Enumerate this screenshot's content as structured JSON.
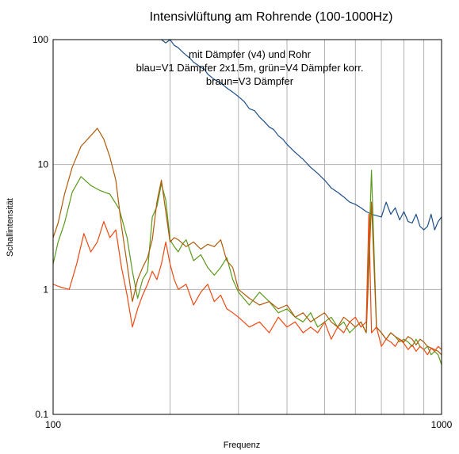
{
  "chart_data": {
    "type": "line",
    "title": "Intensivlüftung am Rohrende (100-1000Hz)",
    "xlabel": "Frequenz",
    "ylabel": "Schallintensität",
    "x_scale": "log",
    "y_scale": "log",
    "xlim": [
      100,
      1000
    ],
    "ylim": [
      0.1,
      100
    ],
    "x_ticks": [
      "100",
      "1000"
    ],
    "y_ticks": [
      "100",
      "10",
      "1",
      "0.1"
    ],
    "grid": true,
    "annotation_lines": [
      "mit Dämpfer (v4) und Rohr",
      "blau=V1 Dämpfer 2x1.5m, grün=V4 Dämpfer korr.",
      "braun=V3 Dämpfer"
    ],
    "colors": {
      "blue": "#1c4e8a",
      "green": "#5a9a1c",
      "brown": "#b05a0a",
      "orange": "#ec4a12",
      "grid": "#b3b3b3"
    },
    "series": [
      {
        "name": "blau=V1",
        "color": "#1c4e8a",
        "x": [
          190,
          195,
          200,
          205,
          210,
          215,
          220,
          225,
          230,
          235,
          240,
          245,
          250,
          260,
          270,
          280,
          290,
          300,
          310,
          320,
          330,
          340,
          350,
          360,
          370,
          380,
          390,
          400,
          420,
          440,
          460,
          480,
          500,
          520,
          540,
          560,
          580,
          600,
          620,
          640,
          660,
          680,
          700,
          720,
          740,
          760,
          780,
          800,
          820,
          840,
          860,
          880,
          900,
          920,
          940,
          960,
          980,
          1000
        ],
        "y": [
          100,
          94,
          100,
          90,
          86,
          80,
          75,
          71,
          66,
          63,
          60,
          58,
          53,
          48,
          45,
          41,
          38,
          35,
          32,
          28,
          27,
          24,
          22,
          20,
          19,
          17,
          16,
          14.5,
          12.5,
          11,
          9.5,
          8.5,
          7.5,
          6.5,
          6,
          5.5,
          5,
          4.8,
          4.5,
          4.2,
          4,
          3.9,
          3.8,
          5,
          4,
          4.5,
          3.6,
          4.2,
          3.5,
          3.4,
          4,
          3.2,
          3,
          3.2,
          4,
          3,
          3.5,
          3.8
        ]
      },
      {
        "name": "grün=V4",
        "color": "#5a9a1c",
        "x": [
          100,
          103,
          107,
          112,
          118,
          125,
          132,
          140,
          148,
          155,
          160,
          165,
          170,
          175,
          180,
          185,
          190,
          195,
          200,
          205,
          210,
          215,
          220,
          230,
          240,
          250,
          260,
          270,
          280,
          290,
          300,
          320,
          340,
          360,
          380,
          400,
          420,
          440,
          460,
          480,
          500,
          520,
          540,
          560,
          580,
          600,
          620,
          640,
          660,
          680,
          700,
          720,
          740,
          760,
          780,
          800,
          820,
          840,
          860,
          880,
          900,
          920,
          940,
          960,
          980,
          1000
        ],
        "y": [
          1.6,
          2.4,
          3.4,
          6,
          8,
          6.8,
          6.2,
          5.8,
          4.4,
          2.6,
          1.4,
          0.85,
          1.2,
          1.4,
          3.8,
          4.6,
          7,
          5.2,
          2.5,
          2.2,
          2,
          2.3,
          2.5,
          1.7,
          1.9,
          1.5,
          1.3,
          1.5,
          1.8,
          1.2,
          0.95,
          0.75,
          0.95,
          0.8,
          0.65,
          0.7,
          0.6,
          0.55,
          0.65,
          0.5,
          0.55,
          0.6,
          0.5,
          0.55,
          0.45,
          0.5,
          0.55,
          0.45,
          9,
          0.5,
          0.45,
          0.4,
          0.45,
          0.42,
          0.38,
          0.4,
          0.38,
          0.35,
          0.4,
          0.35,
          0.33,
          0.35,
          0.3,
          0.32,
          0.3,
          0.25
        ]
      },
      {
        "name": "braun=V3",
        "color": "#b05a0a",
        "x": [
          100,
          103,
          107,
          112,
          118,
          125,
          130,
          135,
          140,
          145,
          150,
          155,
          160,
          165,
          170,
          175,
          180,
          185,
          190,
          195,
          200,
          205,
          210,
          220,
          230,
          240,
          250,
          260,
          270,
          280,
          290,
          300,
          320,
          340,
          360,
          380,
          400,
          420,
          440,
          460,
          480,
          500,
          520,
          540,
          560,
          580,
          600,
          620,
          640,
          660,
          680,
          700,
          720,
          740,
          760,
          780,
          800,
          820,
          840,
          860,
          880,
          900,
          920,
          940,
          960,
          980,
          1000
        ],
        "y": [
          2.6,
          3.4,
          5.8,
          9.5,
          14,
          17,
          19.5,
          16,
          11.5,
          7.5,
          3.2,
          1.6,
          0.8,
          1.2,
          1.5,
          1.8,
          2.5,
          5,
          7.5,
          4.2,
          2.4,
          2.6,
          2.5,
          2.2,
          2.4,
          2.1,
          2.3,
          2.2,
          2.5,
          1.7,
          1.5,
          1,
          0.85,
          0.75,
          0.8,
          0.7,
          0.75,
          0.6,
          0.65,
          0.55,
          0.6,
          0.65,
          0.55,
          0.5,
          0.6,
          0.55,
          0.5,
          0.55,
          0.45,
          5,
          0.5,
          0.45,
          0.4,
          0.45,
          0.42,
          0.4,
          0.38,
          0.42,
          0.4,
          0.36,
          0.4,
          0.38,
          0.35,
          0.34,
          0.33,
          0.32,
          0.3
        ]
      },
      {
        "name": "orange",
        "color": "#ec4a12",
        "x": [
          100,
          104,
          110,
          115,
          120,
          125,
          130,
          135,
          140,
          145,
          150,
          155,
          160,
          165,
          170,
          175,
          180,
          185,
          190,
          195,
          200,
          205,
          210,
          220,
          230,
          240,
          250,
          260,
          270,
          280,
          290,
          300,
          320,
          340,
          360,
          380,
          400,
          420,
          440,
          460,
          480,
          500,
          520,
          540,
          560,
          580,
          600,
          620,
          640,
          650,
          660,
          680,
          700,
          720,
          740,
          760,
          780,
          800,
          820,
          840,
          860,
          880,
          900,
          920,
          940,
          960,
          980,
          1000
        ],
        "y": [
          1.1,
          1.05,
          1,
          1.6,
          2.8,
          2,
          2.4,
          3.5,
          2.6,
          3,
          1.5,
          0.9,
          0.5,
          0.7,
          0.9,
          1.1,
          1.4,
          1.2,
          1.6,
          2.4,
          1.6,
          1.2,
          1,
          1.1,
          0.75,
          0.95,
          1.1,
          0.8,
          0.9,
          0.7,
          0.65,
          0.6,
          0.5,
          0.55,
          0.45,
          0.6,
          0.5,
          0.55,
          0.45,
          0.5,
          0.45,
          0.55,
          0.4,
          0.5,
          0.45,
          0.55,
          0.6,
          0.5,
          0.55,
          4,
          0.45,
          0.5,
          0.35,
          0.4,
          0.38,
          0.35,
          0.4,
          0.37,
          0.33,
          0.36,
          0.32,
          0.35,
          0.33,
          0.3,
          0.34,
          0.32,
          0.35,
          0.33
        ]
      }
    ]
  }
}
